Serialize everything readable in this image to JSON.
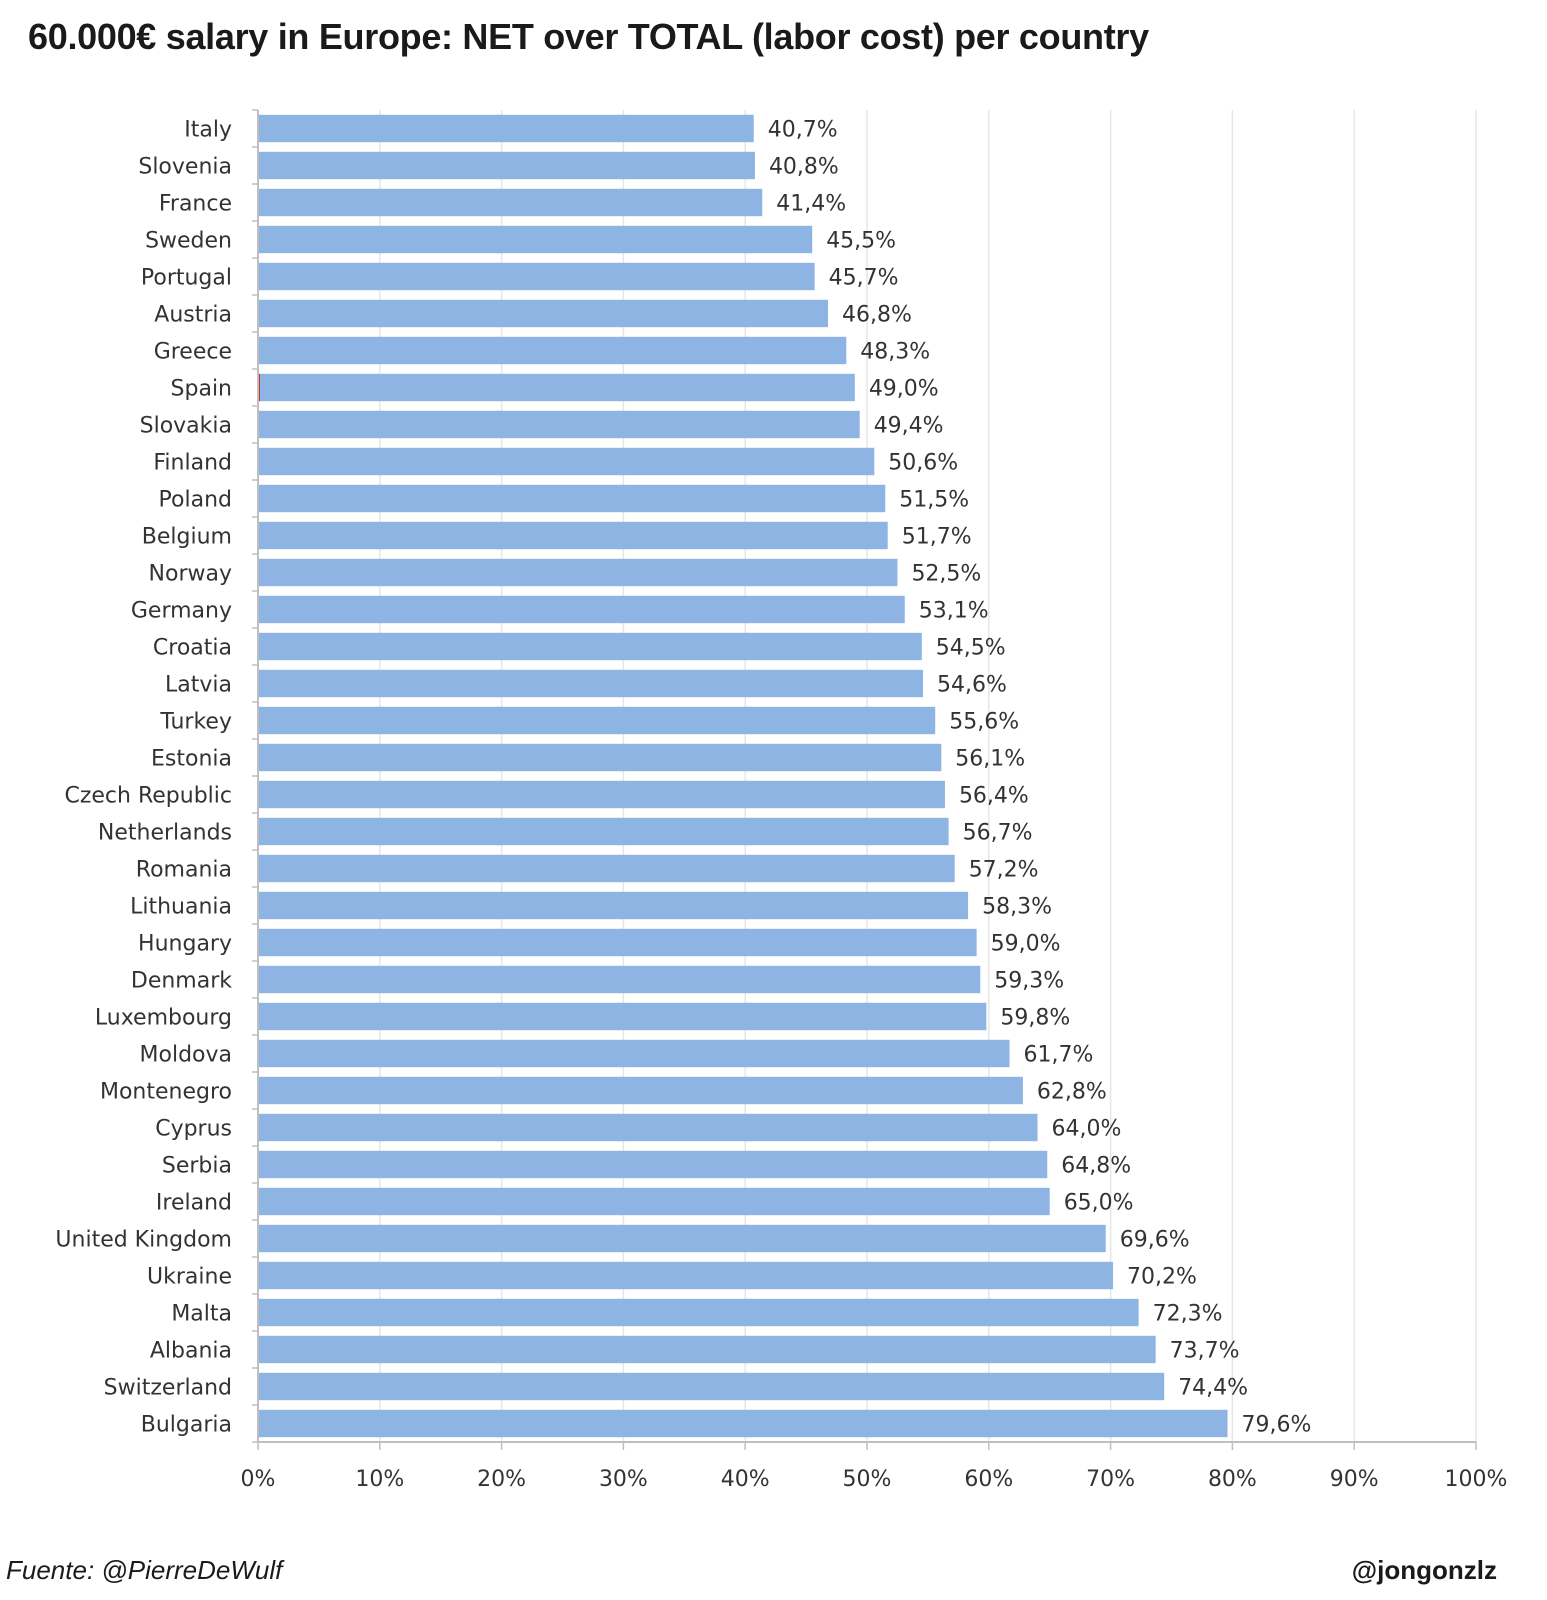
{
  "title": "60.000€ salary in Europe: NET over TOTAL (labor cost) per country",
  "footer": {
    "source": "Fuente: @PierreDeWulf",
    "author": "@jongonzlz"
  },
  "colors": {
    "bar": "#8eb4e3",
    "grid": "#e6e6e6",
    "axis": "#bfbfbf",
    "highlight": "#c0392b"
  },
  "chart_data": {
    "type": "bar",
    "orientation": "horizontal",
    "title": "60.000€ salary in Europe: NET over TOTAL (labor cost) per country",
    "xlabel": "",
    "ylabel": "",
    "xlim": [
      0,
      100
    ],
    "grid": true,
    "categories": [
      "Italy",
      "Slovenia",
      "France",
      "Sweden",
      "Portugal",
      "Austria",
      "Greece",
      "Spain",
      "Slovakia",
      "Finland",
      "Poland",
      "Belgium",
      "Norway",
      "Germany",
      "Croatia",
      "Latvia",
      "Turkey",
      "Estonia",
      "Czech Republic",
      "Netherlands",
      "Romania",
      "Lithuania",
      "Hungary",
      "Denmark",
      "Luxembourg",
      "Moldova",
      "Montenegro",
      "Cyprus",
      "Serbia",
      "Ireland",
      "United Kingdom",
      "Ukraine",
      "Malta",
      "Albania",
      "Switzerland",
      "Bulgaria"
    ],
    "values": [
      40.7,
      40.8,
      41.4,
      45.5,
      45.7,
      46.8,
      48.3,
      49.0,
      49.4,
      50.6,
      51.5,
      51.7,
      52.5,
      53.1,
      54.5,
      54.6,
      55.6,
      56.1,
      56.4,
      56.7,
      57.2,
      58.3,
      59.0,
      59.3,
      59.8,
      61.7,
      62.8,
      64.0,
      64.8,
      65.0,
      69.6,
      70.2,
      72.3,
      73.7,
      74.4,
      79.6
    ],
    "value_labels": [
      "40,7%",
      "40,8%",
      "41,4%",
      "45,5%",
      "45,7%",
      "46,8%",
      "48,3%",
      "49,0%",
      "49,4%",
      "50,6%",
      "51,5%",
      "51,7%",
      "52,5%",
      "53,1%",
      "54,5%",
      "54,6%",
      "55,6%",
      "56,1%",
      "56,4%",
      "56,7%",
      "57,2%",
      "58,3%",
      "59,0%",
      "59,3%",
      "59,8%",
      "61,7%",
      "62,8%",
      "64,0%",
      "64,8%",
      "65,0%",
      "69,6%",
      "70,2%",
      "72,3%",
      "73,7%",
      "74,4%",
      "79,6%"
    ],
    "x_ticks": [
      0,
      10,
      20,
      30,
      40,
      50,
      60,
      70,
      80,
      90,
      100
    ],
    "x_tick_labels": [
      "0%",
      "10%",
      "20%",
      "30%",
      "40%",
      "50%",
      "60%",
      "70%",
      "80%",
      "90%",
      "100%"
    ],
    "highlighted_category": "Spain"
  }
}
